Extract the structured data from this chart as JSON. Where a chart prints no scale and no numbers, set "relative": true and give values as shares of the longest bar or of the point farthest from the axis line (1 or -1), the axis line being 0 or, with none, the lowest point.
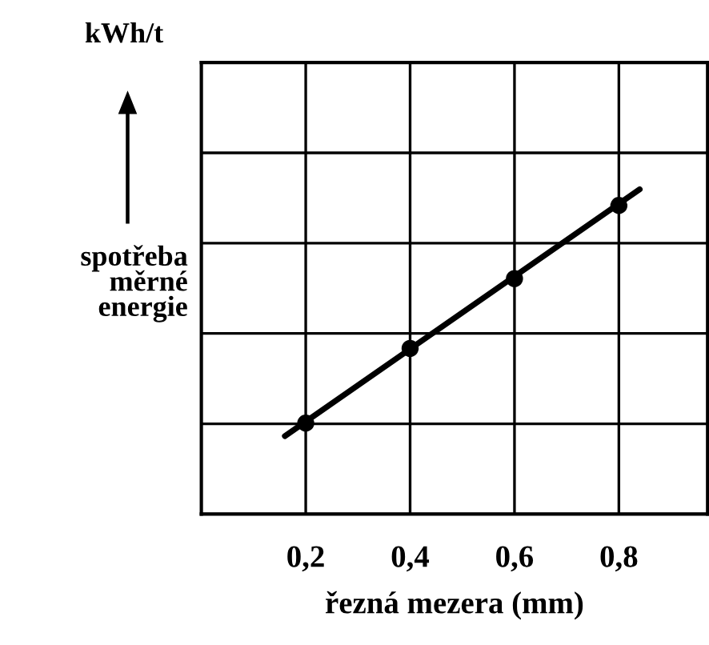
{
  "chart_data": {
    "type": "scatter",
    "relative": true,
    "xlabel": "řezná mezera (mm)",
    "ylabel": "spotřeba\nměrné\nenergie",
    "annotations": [
      "kWh/t"
    ],
    "xlim": [
      0,
      0.97
    ],
    "xticks": [
      {
        "value": 0.2,
        "label": "0,2"
      },
      {
        "value": 0.4,
        "label": "0,4"
      },
      {
        "value": 0.6,
        "label": "0,6"
      },
      {
        "value": 0.8,
        "label": "0,8"
      }
    ],
    "grid": true,
    "series": [
      {
        "color": "#000000",
        "marker": "circle",
        "x": [
          0.2,
          0.4,
          0.6,
          0.8
        ],
        "values": [
          0.28,
          0.51,
          0.725,
          0.95
        ]
      },
      {
        "type": "line",
        "color": "#000000",
        "line_style": "solid",
        "marker": "none",
        "x": [
          0.16,
          0.84
        ],
        "values": [
          0.24,
          1.0
        ]
      }
    ]
  }
}
